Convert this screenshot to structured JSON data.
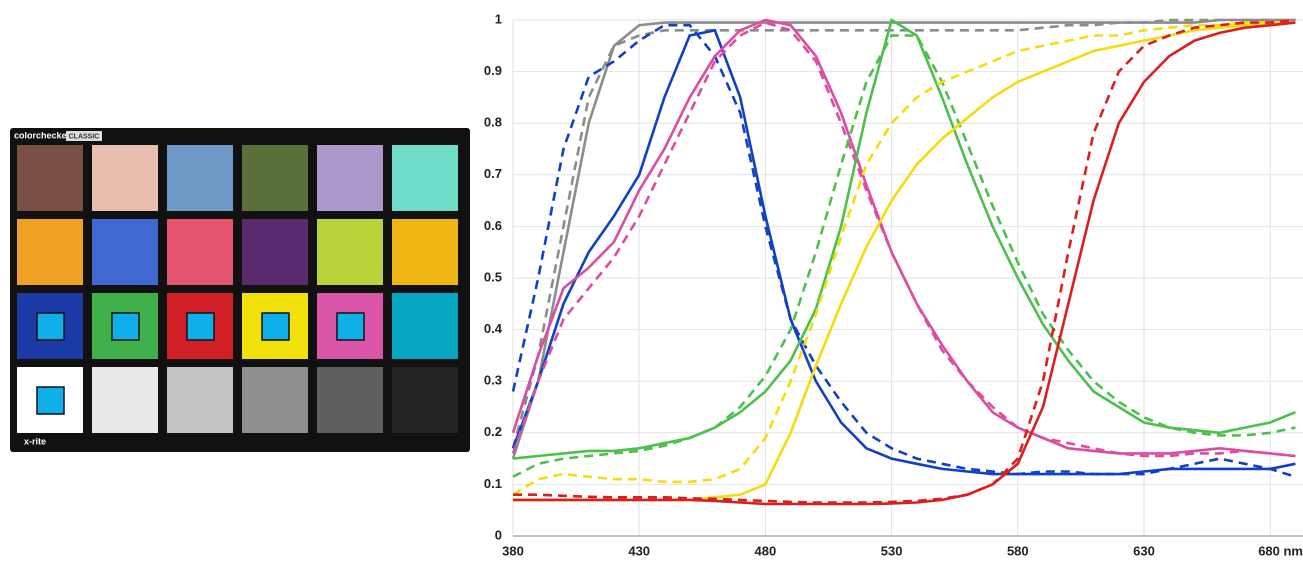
{
  "image": {
    "brand": "colorchecker",
    "edition": "CLASSIC",
    "maker": "x-rite"
  },
  "chart_data": {
    "type": "line",
    "x": [
      380,
      390,
      400,
      410,
      420,
      430,
      440,
      450,
      460,
      470,
      480,
      490,
      500,
      510,
      520,
      530,
      540,
      550,
      560,
      570,
      580,
      590,
      600,
      610,
      620,
      630,
      640,
      650,
      660,
      670,
      680,
      690
    ],
    "xlim": [
      380,
      693
    ],
    "xticks": [
      380,
      430,
      480,
      530,
      580,
      630,
      {
        "value": 680,
        "label": "680 nm"
      }
    ],
    "ylim": [
      0,
      1
    ],
    "yticks": [
      0,
      0.1,
      0.2,
      0.3,
      0.4,
      0.5,
      0.6,
      0.7,
      0.8,
      0.9,
      1
    ],
    "grid": true,
    "series": [
      {
        "color": "#8c8c8c",
        "dash": false,
        "values": [
          0.15,
          0.3,
          0.55,
          0.8,
          0.95,
          0.99,
          0.995,
          0.995,
          0.995,
          0.995,
          0.995,
          0.995,
          0.995,
          0.995,
          0.995,
          0.995,
          0.995,
          0.995,
          0.995,
          0.995,
          0.995,
          0.995,
          0.995,
          0.995,
          0.995,
          0.995,
          0.995,
          0.995,
          1,
          1,
          1,
          1
        ]
      },
      {
        "color": "#8c8c8c",
        "dash": true,
        "values": [
          0.17,
          0.35,
          0.6,
          0.85,
          0.95,
          0.97,
          0.98,
          0.98,
          0.98,
          0.98,
          0.98,
          0.98,
          0.98,
          0.98,
          0.98,
          0.98,
          0.98,
          0.98,
          0.98,
          0.98,
          0.98,
          0.985,
          0.99,
          0.99,
          0.995,
          0.995,
          1,
          1,
          1,
          1,
          1,
          1
        ]
      },
      {
        "color": "#1040c8",
        "dash": false,
        "values": [
          0.17,
          0.3,
          0.45,
          0.55,
          0.62,
          0.7,
          0.85,
          0.97,
          0.98,
          0.85,
          0.62,
          0.42,
          0.3,
          0.22,
          0.17,
          0.15,
          0.14,
          0.13,
          0.125,
          0.12,
          0.12,
          0.12,
          0.12,
          0.12,
          0.12,
          0.125,
          0.13,
          0.13,
          0.13,
          0.13,
          0.13,
          0.14
        ]
      },
      {
        "color": "#1040c8",
        "dash": true,
        "values": [
          0.28,
          0.5,
          0.75,
          0.89,
          0.92,
          0.96,
          0.99,
          0.99,
          0.93,
          0.82,
          0.6,
          0.42,
          0.33,
          0.26,
          0.2,
          0.17,
          0.15,
          0.14,
          0.13,
          0.125,
          0.12,
          0.125,
          0.125,
          0.12,
          0.12,
          0.12,
          0.13,
          0.14,
          0.15,
          0.14,
          0.13,
          0.115
        ]
      },
      {
        "color": "#dc4ca0",
        "dash": false,
        "values": [
          0.2,
          0.35,
          0.48,
          0.52,
          0.57,
          0.67,
          0.75,
          0.85,
          0.93,
          0.98,
          1,
          0.99,
          0.93,
          0.82,
          0.68,
          0.55,
          0.45,
          0.37,
          0.3,
          0.24,
          0.21,
          0.19,
          0.17,
          0.165,
          0.16,
          0.16,
          0.16,
          0.165,
          0.17,
          0.165,
          0.16,
          0.155
        ]
      },
      {
        "color": "#dc4ca0",
        "dash": true,
        "values": [
          0.16,
          0.3,
          0.42,
          0.48,
          0.54,
          0.62,
          0.72,
          0.82,
          0.92,
          0.97,
          0.995,
          0.98,
          0.92,
          0.8,
          0.67,
          0.55,
          0.45,
          0.36,
          0.3,
          0.25,
          0.21,
          0.19,
          0.18,
          0.17,
          0.16,
          0.155,
          0.155,
          0.16,
          0.16,
          0.165,
          0.16,
          0.155
        ]
      },
      {
        "color": "#4cc04c",
        "dash": false,
        "values": [
          0.15,
          0.155,
          0.16,
          0.165,
          0.165,
          0.17,
          0.18,
          0.19,
          0.21,
          0.24,
          0.28,
          0.34,
          0.44,
          0.6,
          0.82,
          1,
          0.97,
          0.85,
          0.72,
          0.6,
          0.5,
          0.41,
          0.34,
          0.28,
          0.25,
          0.22,
          0.21,
          0.205,
          0.2,
          0.21,
          0.22,
          0.24
        ]
      },
      {
        "color": "#4cc04c",
        "dash": true,
        "values": [
          0.115,
          0.14,
          0.15,
          0.155,
          0.16,
          0.165,
          0.175,
          0.19,
          0.21,
          0.25,
          0.31,
          0.4,
          0.55,
          0.72,
          0.88,
          0.97,
          0.97,
          0.88,
          0.76,
          0.64,
          0.53,
          0.43,
          0.36,
          0.3,
          0.26,
          0.23,
          0.21,
          0.2,
          0.195,
          0.195,
          0.2,
          0.21
        ]
      },
      {
        "color": "#f5dc0a",
        "dash": false,
        "values": [
          0.07,
          0.07,
          0.07,
          0.07,
          0.07,
          0.07,
          0.07,
          0.07,
          0.075,
          0.08,
          0.1,
          0.2,
          0.33,
          0.45,
          0.56,
          0.65,
          0.72,
          0.77,
          0.81,
          0.85,
          0.88,
          0.9,
          0.92,
          0.94,
          0.95,
          0.96,
          0.97,
          0.98,
          0.985,
          0.99,
          0.99,
          0.995
        ]
      },
      {
        "color": "#f5dc0a",
        "dash": true,
        "values": [
          0.08,
          0.11,
          0.12,
          0.115,
          0.11,
          0.11,
          0.105,
          0.105,
          0.11,
          0.13,
          0.19,
          0.3,
          0.43,
          0.58,
          0.72,
          0.8,
          0.85,
          0.88,
          0.9,
          0.92,
          0.94,
          0.95,
          0.96,
          0.97,
          0.97,
          0.98,
          0.985,
          0.99,
          0.99,
          0.995,
          0.995,
          0.995
        ]
      },
      {
        "color": "#dc1e1e",
        "dash": false,
        "values": [
          0.07,
          0.07,
          0.07,
          0.07,
          0.07,
          0.07,
          0.07,
          0.07,
          0.068,
          0.065,
          0.062,
          0.062,
          0.062,
          0.062,
          0.062,
          0.063,
          0.065,
          0.07,
          0.08,
          0.1,
          0.14,
          0.25,
          0.45,
          0.65,
          0.8,
          0.88,
          0.93,
          0.96,
          0.975,
          0.985,
          0.99,
          0.995
        ]
      },
      {
        "color": "#dc1e1e",
        "dash": true,
        "values": [
          0.08,
          0.08,
          0.078,
          0.076,
          0.075,
          0.075,
          0.075,
          0.073,
          0.072,
          0.07,
          0.068,
          0.066,
          0.065,
          0.065,
          0.065,
          0.066,
          0.068,
          0.072,
          0.08,
          0.1,
          0.15,
          0.3,
          0.55,
          0.78,
          0.9,
          0.95,
          0.97,
          0.985,
          0.99,
          0.995,
          0.995,
          1
        ]
      }
    ]
  }
}
